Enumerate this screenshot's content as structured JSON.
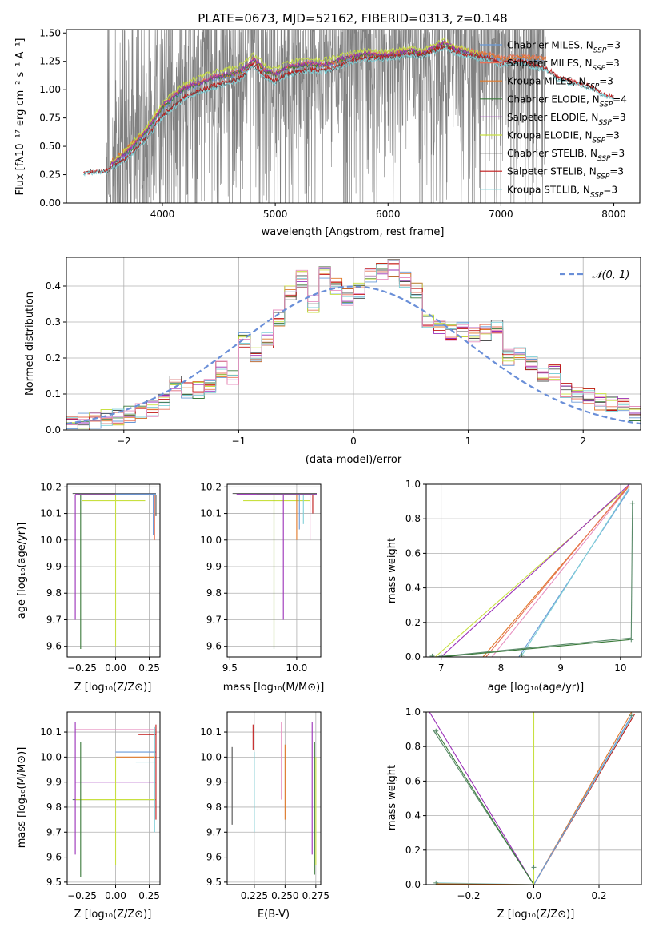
{
  "chart_data": [
    {
      "id": "spectrum",
      "type": "line",
      "title": "PLATE=0673, MJD=52162, FIBERID=0313, z=0.148",
      "xlabel": "wavelength [Angstrom, rest frame]",
      "ylabel": "Flux [fλ10⁻¹⁷ erg cm⁻² s⁻¹ A⁻¹]",
      "xlim": [
        3150,
        8230
      ],
      "ylim": [
        0,
        1.53
      ],
      "x_ticks": [
        "4000",
        "5000",
        "6000",
        "7000",
        "8000"
      ],
      "y_ticks": [
        "0.00",
        "0.25",
        "0.50",
        "0.75",
        "1.00",
        "1.25",
        "1.50"
      ],
      "grid": false,
      "legend_position": "right",
      "observed": {
        "color": "#808080",
        "x_range": [
          3500,
          7400
        ]
      },
      "series": [
        {
          "name": "Chabrier MILES, N_SSP=3",
          "color": "#6a9ad8",
          "x": [
            3540,
            3700,
            3850,
            4000,
            4100,
            4200,
            4300,
            4400,
            4500,
            4600,
            4700,
            4800,
            4850,
            4900,
            5000,
            5100,
            5200,
            5300,
            5400,
            5500,
            5600,
            5700,
            5800,
            5900,
            6000,
            6100,
            6200,
            6300,
            6400,
            6500,
            6600,
            6700,
            6800,
            6900,
            7000,
            7100,
            7200,
            7300,
            7400
          ],
          "y": [
            0.3,
            0.44,
            0.6,
            0.82,
            0.92,
            1.0,
            1.03,
            1.08,
            1.1,
            1.12,
            1.15,
            1.25,
            1.22,
            1.16,
            1.12,
            1.18,
            1.2,
            1.22,
            1.2,
            1.22,
            1.26,
            1.28,
            1.3,
            1.3,
            1.3,
            1.32,
            1.33,
            1.31,
            1.36,
            1.4,
            1.35,
            1.33,
            1.3,
            1.3,
            1.26,
            1.27,
            1.28,
            1.27,
            1.26
          ]
        },
        {
          "name": "Salpeter MILES, N_SSP=3",
          "color": "#e8735a",
          "x": [
            3540,
            3700,
            3850,
            4000,
            4100,
            4200,
            4300,
            4400,
            4500,
            4600,
            4700,
            4800,
            4850,
            4900,
            5000,
            5100,
            5200,
            5300,
            5400,
            5500,
            5600,
            5700,
            5800,
            5900,
            6000,
            6100,
            6200,
            6300,
            6400,
            6500,
            6600,
            6700,
            6800,
            6900,
            7000,
            7100,
            7200,
            7300,
            7400
          ],
          "y": [
            0.34,
            0.48,
            0.63,
            0.86,
            0.95,
            1.03,
            1.06,
            1.1,
            1.13,
            1.14,
            1.17,
            1.27,
            1.24,
            1.18,
            1.14,
            1.2,
            1.22,
            1.24,
            1.22,
            1.24,
            1.28,
            1.3,
            1.32,
            1.32,
            1.32,
            1.34,
            1.35,
            1.33,
            1.37,
            1.42,
            1.37,
            1.35,
            1.33,
            1.32,
            1.28,
            1.29,
            1.3,
            1.29,
            1.28
          ]
        },
        {
          "name": "Kroupa MILES, N_SSP=3",
          "color": "#e07828",
          "x": [
            3540,
            3700,
            3850,
            4000,
            4100,
            4200,
            4300,
            4400,
            4500,
            4600,
            4700,
            4800,
            4850,
            4900,
            5000,
            5100,
            5200,
            5300,
            5400,
            5500,
            5600,
            5700,
            5800,
            5900,
            6000,
            6100,
            6200,
            6300,
            6400,
            6500,
            6600,
            6700,
            6800,
            6900,
            7000,
            7100,
            7200,
            7300,
            7400
          ],
          "y": [
            0.36,
            0.5,
            0.64,
            0.85,
            0.94,
            1.02,
            1.05,
            1.09,
            1.12,
            1.13,
            1.16,
            1.26,
            1.23,
            1.17,
            1.13,
            1.19,
            1.21,
            1.23,
            1.21,
            1.23,
            1.27,
            1.29,
            1.31,
            1.31,
            1.31,
            1.33,
            1.34,
            1.32,
            1.36,
            1.41,
            1.36,
            1.34,
            1.32,
            1.31,
            1.27,
            1.28,
            1.29,
            1.28,
            1.27
          ]
        },
        {
          "name": "Chabrier ELODIE, N_SSP=4",
          "color": "#3a7a3a",
          "x": [
            3540,
            3700,
            3850,
            4000,
            4100,
            4200,
            4300,
            4400,
            4500,
            4600,
            4700,
            4800,
            4850,
            4900,
            5000,
            5100,
            5200,
            5300,
            5400,
            5500,
            5600,
            5700,
            5800,
            5900,
            6000,
            6100,
            6200,
            6300,
            6400,
            6500,
            6600,
            6700,
            6800
          ],
          "y": [
            0.33,
            0.45,
            0.62,
            0.84,
            0.93,
            1.01,
            1.04,
            1.08,
            1.11,
            1.13,
            1.16,
            1.26,
            1.23,
            1.17,
            1.13,
            1.19,
            1.21,
            1.22,
            1.21,
            1.23,
            1.27,
            1.29,
            1.31,
            1.3,
            1.3,
            1.32,
            1.34,
            1.32,
            1.36,
            1.41,
            1.35,
            1.33,
            1.3
          ]
        },
        {
          "name": "Salpeter ELODIE, N_SSP=3",
          "color": "#9b30b8",
          "x": [
            3540,
            3700,
            3850,
            4000,
            4100,
            4200,
            4300,
            4400,
            4500,
            4600,
            4700,
            4800,
            4850,
            4900,
            5000,
            5100,
            5200,
            5300,
            5400,
            5500,
            5600,
            5700,
            5800,
            5900,
            6000,
            6100,
            6200,
            6300,
            6400,
            6500,
            6600,
            6700,
            6800
          ],
          "y": [
            0.34,
            0.46,
            0.63,
            0.85,
            0.94,
            1.02,
            1.05,
            1.09,
            1.12,
            1.14,
            1.17,
            1.27,
            1.24,
            1.18,
            1.14,
            1.2,
            1.22,
            1.23,
            1.22,
            1.24,
            1.28,
            1.3,
            1.32,
            1.31,
            1.31,
            1.33,
            1.35,
            1.33,
            1.37,
            1.42,
            1.36,
            1.34,
            1.31
          ]
        },
        {
          "name": "Kroupa ELODIE, N_SSP=3",
          "color": "#c8e040",
          "x": [
            3540,
            3700,
            3850,
            4000,
            4100,
            4200,
            4300,
            4400,
            4500,
            4600,
            4700,
            4800,
            4850,
            4900,
            5000,
            5100,
            5200,
            5300,
            5400,
            5500,
            5600,
            5700,
            5800,
            5900,
            6000,
            6100,
            6200,
            6300,
            6400,
            6500,
            6600,
            6700,
            6800
          ],
          "y": [
            0.35,
            0.5,
            0.66,
            0.88,
            0.98,
            1.06,
            1.1,
            1.14,
            1.17,
            1.19,
            1.22,
            1.31,
            1.28,
            1.22,
            1.18,
            1.24,
            1.26,
            1.27,
            1.26,
            1.28,
            1.31,
            1.33,
            1.35,
            1.34,
            1.34,
            1.36,
            1.37,
            1.35,
            1.39,
            1.44,
            1.38,
            1.36,
            1.33
          ]
        },
        {
          "name": "Chabrier STELIB, N_SSP=3",
          "color": "#505050",
          "x": [
            3300,
            3500,
            3700,
            3850,
            4000,
            4100,
            4200,
            4300,
            4400,
            4500,
            4600,
            4700,
            4800,
            4850,
            4900,
            5000,
            5100,
            5200,
            5300,
            5400,
            5500,
            5600,
            5700,
            5800,
            5900,
            6000,
            6100,
            6200,
            6300,
            6400,
            6500,
            6600,
            6700,
            6800,
            6900,
            7000,
            7100,
            7200,
            7300,
            7400,
            7500,
            7600,
            7700,
            7800,
            7900,
            8000
          ],
          "y": [
            0.27,
            0.28,
            0.4,
            0.56,
            0.76,
            0.85,
            0.93,
            0.97,
            1.01,
            1.04,
            1.06,
            1.1,
            1.22,
            1.18,
            1.11,
            1.07,
            1.13,
            1.15,
            1.17,
            1.16,
            1.18,
            1.22,
            1.25,
            1.27,
            1.27,
            1.28,
            1.29,
            1.31,
            1.29,
            1.34,
            1.38,
            1.32,
            1.3,
            1.28,
            1.27,
            1.22,
            1.24,
            1.24,
            1.2,
            1.18,
            1.1,
            1.07,
            1.05,
            1.02,
            0.96,
            0.93
          ]
        },
        {
          "name": "Salpeter STELIB, N_SSP=3",
          "color": "#c01818",
          "x": [
            3300,
            3500,
            3700,
            3850,
            4000,
            4100,
            4200,
            4300,
            4400,
            4500,
            4600,
            4700,
            4800,
            4850,
            4900,
            5000,
            5100,
            5200,
            5300,
            5400,
            5500,
            5600,
            5700,
            5800,
            5900,
            6000,
            6100,
            6200,
            6300,
            6400,
            6500,
            6600,
            6700,
            6800,
            6900,
            7000,
            7100,
            7200,
            7300,
            7400,
            7500,
            7600,
            7700,
            7800,
            7900,
            8000
          ],
          "y": [
            0.27,
            0.28,
            0.41,
            0.57,
            0.77,
            0.86,
            0.94,
            0.98,
            1.02,
            1.05,
            1.07,
            1.11,
            1.23,
            1.19,
            1.12,
            1.08,
            1.14,
            1.16,
            1.18,
            1.17,
            1.19,
            1.23,
            1.26,
            1.28,
            1.28,
            1.29,
            1.3,
            1.32,
            1.3,
            1.35,
            1.39,
            1.33,
            1.31,
            1.29,
            1.28,
            1.23,
            1.25,
            1.25,
            1.22,
            1.2,
            1.12,
            1.08,
            1.06,
            1.03,
            0.97,
            0.94
          ]
        },
        {
          "name": "Kroupa STELIB, N_SSP=3",
          "color": "#7fd0d8",
          "x": [
            3300,
            3500,
            3700,
            3850,
            4000,
            4100,
            4200,
            4300,
            4400,
            4500,
            4600,
            4700,
            4800,
            4850,
            4900,
            5000,
            5100,
            5200,
            5300,
            5400,
            5500,
            5600,
            5700,
            5800,
            5900,
            6000,
            6100,
            6200,
            6300,
            6400,
            6500,
            6600,
            6700,
            6800,
            6900,
            7000,
            7100,
            7200,
            7300,
            7400,
            7500,
            7600,
            7700,
            7800,
            7900,
            8000
          ],
          "y": [
            0.26,
            0.27,
            0.39,
            0.55,
            0.75,
            0.84,
            0.92,
            0.96,
            1.0,
            1.03,
            1.05,
            1.09,
            1.21,
            1.17,
            1.1,
            1.06,
            1.12,
            1.14,
            1.16,
            1.15,
            1.17,
            1.21,
            1.24,
            1.26,
            1.26,
            1.27,
            1.28,
            1.3,
            1.28,
            1.33,
            1.37,
            1.31,
            1.29,
            1.27,
            1.26,
            1.21,
            1.23,
            1.23,
            1.19,
            1.17,
            1.09,
            1.06,
            1.04,
            1.01,
            0.95,
            0.92
          ]
        }
      ]
    },
    {
      "id": "residuals",
      "type": "histogram",
      "xlabel": "(data-model)/error",
      "ylabel": "Normed distribution",
      "xlim": [
        -2.5,
        2.5
      ],
      "ylim": [
        0,
        0.48
      ],
      "x_ticks": [
        "−2",
        "−1",
        "0",
        "1",
        "2"
      ],
      "y_ticks": [
        "0.0",
        "0.1",
        "0.2",
        "0.3",
        "0.4"
      ],
      "grid": true,
      "legend_position": "top-right",
      "legend_entry": "𝒩(0, 1)",
      "curve_color": "#6a8fd8",
      "bin_edges": [
        -2.5,
        -2.4,
        -2.3,
        -2.2,
        -2.1,
        -2.0,
        -1.9,
        -1.8,
        -1.7,
        -1.6,
        -1.5,
        -1.4,
        -1.3,
        -1.2,
        -1.1,
        -1.0,
        -0.9,
        -0.8,
        -0.7,
        -0.6,
        -0.5,
        -0.4,
        -0.3,
        -0.2,
        -0.1,
        0.0,
        0.1,
        0.2,
        0.3,
        0.4,
        0.5,
        0.6,
        0.7,
        0.8,
        0.9,
        1.0,
        1.1,
        1.2,
        1.3,
        1.4,
        1.5,
        1.6,
        1.7,
        1.8,
        1.9,
        2.0,
        2.1,
        2.2,
        2.3,
        2.4,
        2.5
      ],
      "base_values": [
        0.018,
        0.022,
        0.028,
        0.032,
        0.036,
        0.045,
        0.055,
        0.06,
        0.08,
        0.13,
        0.11,
        0.11,
        0.12,
        0.17,
        0.15,
        0.25,
        0.21,
        0.25,
        0.31,
        0.38,
        0.42,
        0.35,
        0.43,
        0.4,
        0.37,
        0.39,
        0.43,
        0.44,
        0.45,
        0.42,
        0.39,
        0.3,
        0.28,
        0.27,
        0.28,
        0.26,
        0.27,
        0.28,
        0.2,
        0.22,
        0.18,
        0.15,
        0.16,
        0.11,
        0.1,
        0.09,
        0.08,
        0.07,
        0.065,
        0.05
      ],
      "series_colors": [
        "#6a9ad8",
        "#e8735a",
        "#e07828",
        "#3a7a3a",
        "#9b30b8",
        "#c8e040",
        "#505050",
        "#c01818",
        "#7fd0d8",
        "#e890c0"
      ]
    },
    {
      "id": "age-vs-z",
      "type": "line",
      "xlabel": "Z [log₁₀(Z/Z⊙)]",
      "ylabel": "age  [log₁₀(age/yr)]",
      "xlim": [
        -0.36,
        0.33
      ],
      "ylim": [
        9.56,
        10.21
      ],
      "x_ticks": [
        "−0.25",
        "0.00",
        "0.25"
      ],
      "y_ticks": [
        "9.6",
        "9.7",
        "9.8",
        "9.9",
        "10.0",
        "10.1",
        "10.2"
      ],
      "grid": true
    },
    {
      "id": "age-vs-mass",
      "type": "line",
      "xlabel": "mass [log₁₀(M/M⊙)]",
      "xlim": [
        9.48,
        10.18
      ],
      "ylim": [
        9.56,
        10.21
      ],
      "x_ticks": [
        "9.5",
        "10.0"
      ],
      "y_ticks": [
        "9.6",
        "9.7",
        "9.8",
        "9.9",
        "10.0",
        "10.1",
        "10.2"
      ],
      "grid": true
    },
    {
      "id": "weight-vs-age",
      "type": "line",
      "xlabel": "age  [log₁₀(age/yr)]",
      "ylabel": "mass weight",
      "xlim": [
        6.75,
        10.35
      ],
      "ylim": [
        0,
        1.0
      ],
      "x_ticks": [
        "7",
        "8",
        "9",
        "10"
      ],
      "y_ticks": [
        "0.0",
        "0.2",
        "0.4",
        "0.6",
        "0.8",
        "1.0"
      ],
      "grid": true
    },
    {
      "id": "mass-vs-z",
      "type": "line",
      "xlabel": "Z [log₁₀(Z/Z⊙)]",
      "ylabel": "mass [log₁₀(M/M⊙)]",
      "xlim": [
        -0.36,
        0.33
      ],
      "ylim": [
        9.49,
        10.18
      ],
      "x_ticks": [
        "−0.25",
        "0.00",
        "0.25"
      ],
      "y_ticks": [
        "9.5",
        "9.6",
        "9.7",
        "9.8",
        "9.9",
        "10.0",
        "10.1"
      ],
      "grid": true
    },
    {
      "id": "mass-vs-ebv",
      "type": "line",
      "xlabel": "E(B-V)",
      "xlim": [
        0.203,
        0.279
      ],
      "ylim": [
        9.49,
        10.18
      ],
      "x_ticks": [
        "0.225",
        "0.250",
        "0.275"
      ],
      "y_ticks": [
        "9.5",
        "9.6",
        "9.7",
        "9.8",
        "9.9",
        "10.0",
        "10.1"
      ],
      "grid": true
    },
    {
      "id": "weight-vs-z",
      "type": "line",
      "xlabel": "Z [log₁₀(Z/Z⊙)]",
      "ylabel": "mass weight",
      "xlim": [
        -0.33,
        0.33
      ],
      "ylim": [
        0,
        1.0
      ],
      "x_ticks": [
        "−0.2",
        "0.0",
        "0.2"
      ],
      "y_ticks": [
        "0.0",
        "0.2",
        "0.4",
        "0.6",
        "0.8",
        "1.0"
      ],
      "grid": true
    }
  ]
}
